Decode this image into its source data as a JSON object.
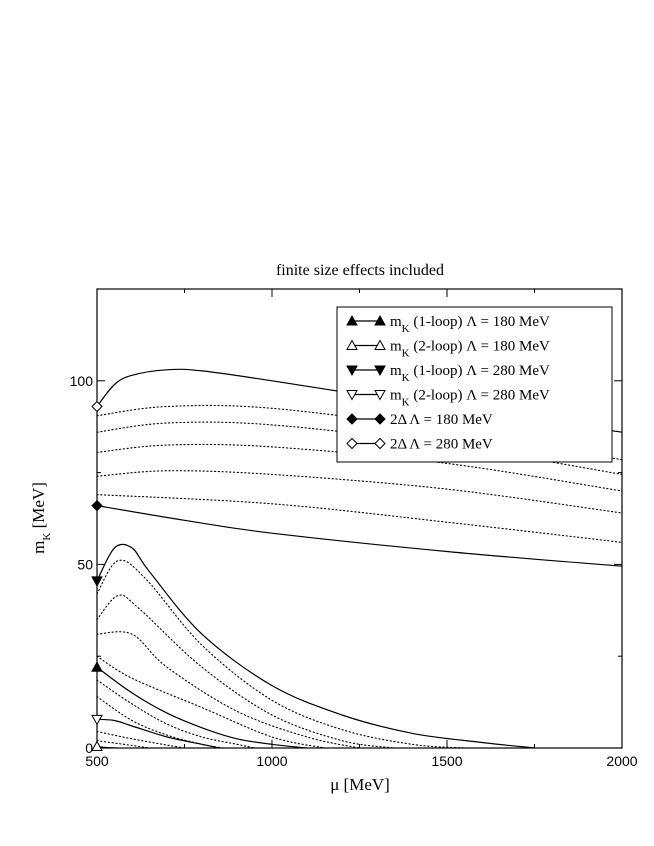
{
  "chart_data": {
    "type": "line",
    "title": "finite size effects included",
    "xlabel": "μ  [MeV]",
    "ylabel": "m_K [MeV]",
    "xlim": [
      500,
      2000
    ],
    "ylim": [
      0,
      125
    ],
    "xticks": [
      500,
      1000,
      1500,
      2000
    ],
    "yticks": [
      0,
      50,
      100
    ],
    "grid": false,
    "legend_position": "top-right",
    "legend": [
      {
        "marker": "triangle-up-filled",
        "label": "m_K (1-loop) Λ = 180 MeV"
      },
      {
        "marker": "triangle-up-open",
        "label": "m_K (2-loop) Λ = 180 MeV"
      },
      {
        "marker": "triangle-down-filled",
        "label": "m_K (1-loop) Λ = 280 MeV"
      },
      {
        "marker": "triangle-down-open",
        "label": "m_K (2-loop) Λ = 280 MeV"
      },
      {
        "marker": "diamond-filled",
        "label": "2Δ  Λ = 180 MeV"
      },
      {
        "marker": "diamond-open",
        "label": "2Δ  Λ = 280 MeV"
      }
    ],
    "series": [
      {
        "style": "solid",
        "marker": "diamond-open",
        "x": [
          500,
          550,
          600,
          700,
          800,
          1000,
          1250,
          1500,
          1750,
          2000
        ],
        "y": [
          93,
          99,
          101.5,
          103,
          102.7,
          100,
          96.3,
          93,
          89.5,
          86
        ]
      },
      {
        "style": "dotted",
        "x": [
          500,
          700,
          1000,
          1500,
          2000
        ],
        "y": [
          90.5,
          93,
          92.5,
          86.5,
          78.5
        ]
      },
      {
        "style": "dotted",
        "x": [
          500,
          700,
          1000,
          1500,
          2000
        ],
        "y": [
          86,
          88.5,
          88,
          82.5,
          74.5
        ]
      },
      {
        "style": "dotted",
        "x": [
          500,
          700,
          1000,
          1500,
          2000
        ],
        "y": [
          80.5,
          82.5,
          82,
          77.5,
          70
        ]
      },
      {
        "style": "dotted",
        "x": [
          500,
          700,
          1000,
          1500,
          2000
        ],
        "y": [
          74,
          75.5,
          74.5,
          70.5,
          64
        ]
      },
      {
        "style": "dotted",
        "x": [
          500,
          1000,
          1500,
          2000
        ],
        "y": [
          69,
          66.5,
          61.5,
          56
        ]
      },
      {
        "style": "solid",
        "marker": "diamond-filled",
        "x": [
          500,
          750,
          1000,
          1500,
          2000
        ],
        "y": [
          66,
          62,
          58.5,
          53.5,
          49.5
        ]
      },
      {
        "style": "solid",
        "marker": "triangle-down-filled",
        "x": [
          500,
          550,
          600,
          650,
          800,
          1000,
          1200,
          1400,
          1600,
          1750
        ],
        "y": [
          45.5,
          54.5,
          54.5,
          48,
          31,
          17,
          9,
          4,
          1.5,
          0
        ]
      },
      {
        "style": "dotted",
        "x": [
          500,
          560,
          640,
          800,
          1000,
          1200,
          1400,
          1550
        ],
        "y": [
          42,
          51,
          46,
          28,
          13,
          5,
          1,
          0
        ]
      },
      {
        "style": "dotted",
        "x": [
          500,
          560,
          620,
          800,
          1000,
          1200,
          1350
        ],
        "y": [
          35,
          41.5,
          38,
          22,
          9,
          2,
          0
        ]
      },
      {
        "style": "dotted",
        "x": [
          500,
          600,
          700,
          900,
          1100,
          1250
        ],
        "y": [
          31,
          31,
          22,
          10,
          3,
          0
        ]
      },
      {
        "style": "dotted",
        "x": [
          500,
          600,
          800,
          1000,
          1150
        ],
        "y": [
          25,
          19,
          11,
          3,
          0
        ]
      },
      {
        "style": "solid",
        "marker": "triangle-up-filled",
        "x": [
          500,
          600,
          700,
          800,
          900,
          1000,
          1100
        ],
        "y": [
          22,
          15,
          9.5,
          5.5,
          2.5,
          1,
          0
        ]
      },
      {
        "style": "dotted",
        "x": [
          500,
          600,
          700,
          800,
          900,
          950
        ],
        "y": [
          18.5,
          12,
          6.5,
          3,
          1,
          0
        ]
      },
      {
        "style": "dotted",
        "x": [
          500,
          600,
          700,
          800,
          860
        ],
        "y": [
          14,
          7.5,
          3.5,
          1,
          0
        ]
      },
      {
        "style": "solid",
        "marker": "triangle-down-open",
        "x": [
          500,
          550,
          600,
          700,
          800,
          850
        ],
        "y": [
          7.8,
          7.5,
          6,
          3,
          1,
          0
        ]
      },
      {
        "style": "dotted",
        "x": [
          500,
          600,
          700,
          750
        ],
        "y": [
          4.5,
          2.5,
          0.8,
          0
        ]
      },
      {
        "style": "dotted",
        "x": [
          500,
          600,
          650
        ],
        "y": [
          2,
          0.7,
          0
        ]
      },
      {
        "style": "solid",
        "marker": "triangle-up-open",
        "x": [
          500,
          530,
          560
        ],
        "y": [
          0.4,
          0.1,
          0
        ]
      }
    ]
  }
}
